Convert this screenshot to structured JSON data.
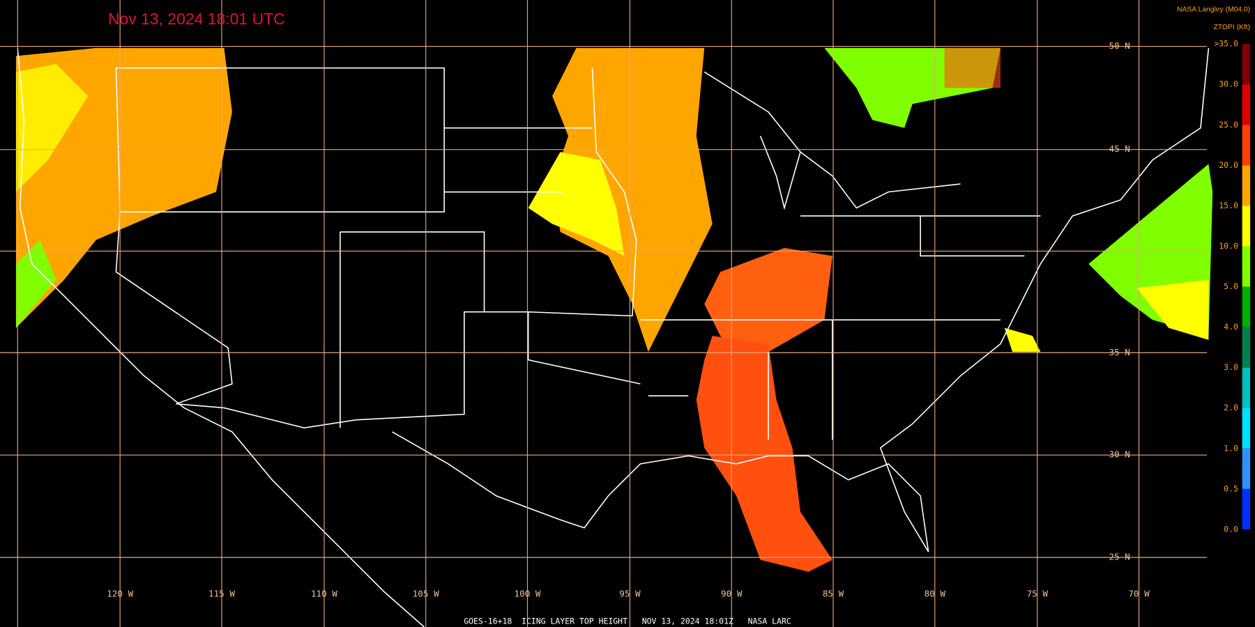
{
  "header": {
    "timestamp": "Nov 13, 2024 18:01 UTC",
    "source": "NASA Langley (M04.0)"
  },
  "legend": {
    "title": "ZTOPI (Kft)",
    "labels": [
      ">35.0",
      "30.0",
      "25.0",
      "20.0",
      "15.0",
      "10.0",
      "5.0",
      "4.0",
      "3.0",
      "2.0",
      "1.0",
      "0.5",
      "0.0"
    ]
  },
  "map": {
    "lat_labels": [
      "50 N",
      "45 N",
      "35 N",
      "30 N",
      "25 N"
    ],
    "lon_labels": [
      "120 W",
      "115 W",
      "110 W",
      "105 W",
      "100 W",
      "95 W",
      "90 W",
      "85 W",
      "80 W",
      "75 W",
      "70 W"
    ]
  },
  "footer": {
    "caption": "GOES-16+18  ICING LAYER TOP HEIGHT   NOV 13, 2024 18:01Z   NASA LARC"
  }
}
